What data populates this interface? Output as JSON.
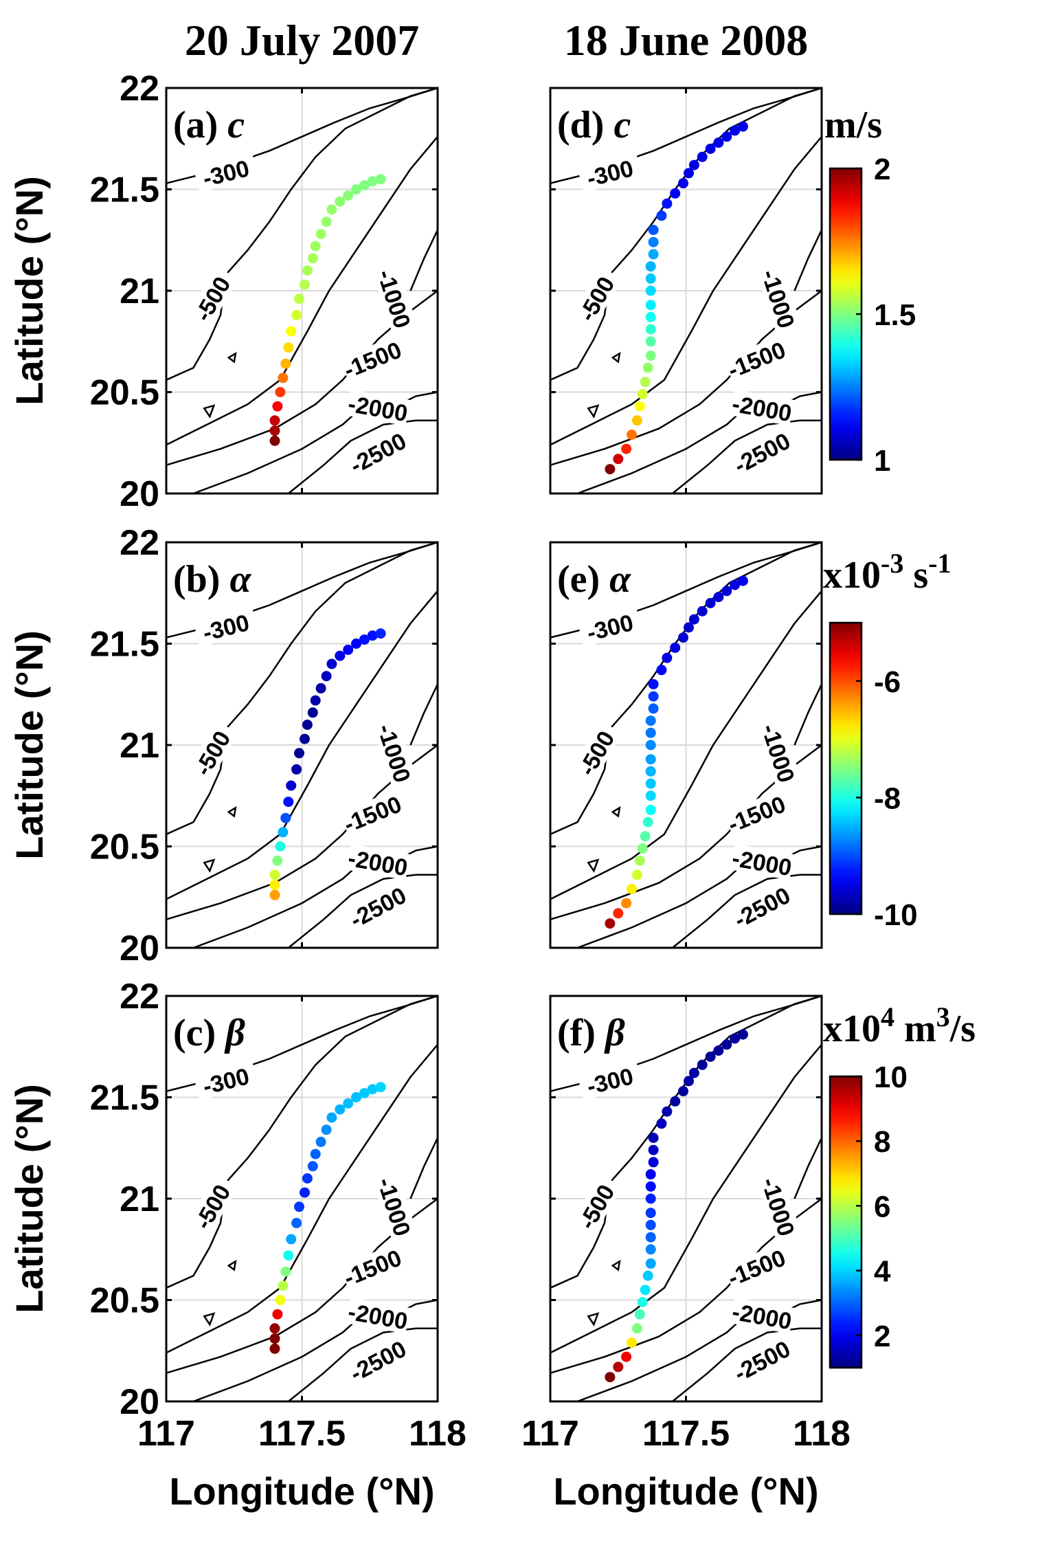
{
  "chart_data": {
    "type": "scatter",
    "columns": [
      {
        "title": "20 July 2007"
      },
      {
        "title": "18 June 2008"
      }
    ],
    "xlabel": "Longitude (°N)",
    "ylabel": "Latitude (°N)",
    "xlim": [
      117,
      118
    ],
    "ylim": [
      20,
      22
    ],
    "x_ticks": [
      "117",
      "117.5",
      "118"
    ],
    "y_ticks": [
      "20",
      "20.5",
      "21",
      "21.5",
      "22"
    ],
    "contour_labels": [
      "-300",
      "-500",
      "-1000",
      "-1500",
      "-2000",
      "-2500"
    ],
    "tracks": {
      "2007": {
        "lon": [
          117.4,
          117.4,
          117.4,
          117.41,
          117.42,
          117.43,
          117.44,
          117.45,
          117.46,
          117.48,
          117.49,
          117.51,
          117.52,
          117.54,
          117.55,
          117.57,
          117.59,
          117.61,
          117.64,
          117.67,
          117.7,
          117.73,
          117.76,
          117.79
        ],
        "lat": [
          20.26,
          20.31,
          20.36,
          20.43,
          20.5,
          20.57,
          20.64,
          20.72,
          20.8,
          20.88,
          20.96,
          21.03,
          21.1,
          21.16,
          21.22,
          21.28,
          21.34,
          21.4,
          21.44,
          21.47,
          21.5,
          21.52,
          21.54,
          21.55
        ],
        "c": [
          2.0,
          1.96,
          1.93,
          1.88,
          1.82,
          1.76,
          1.7,
          1.66,
          1.62,
          1.58,
          1.56,
          1.55,
          1.54,
          1.54,
          1.53,
          1.53,
          1.52,
          1.52,
          1.51,
          1.51,
          1.5,
          1.5,
          1.5,
          1.5
        ],
        "alpha": [
          -6.4,
          -6.8,
          -7.1,
          -7.5,
          -8.0,
          -8.5,
          -9.0,
          -9.3,
          -9.6,
          -9.8,
          -9.9,
          -9.9,
          -9.9,
          -9.9,
          -9.8,
          -9.8,
          -9.7,
          -9.6,
          -9.5,
          -9.4,
          -9.4,
          -9.3,
          -9.3,
          -9.2
        ],
        "beta": [
          10.0,
          10.0,
          9.8,
          9.0,
          6.5,
          6.0,
          5.5,
          4.5,
          3.6,
          3.0,
          2.6,
          2.4,
          2.6,
          2.9,
          3.0,
          3.2,
          3.4,
          3.6,
          3.7,
          3.8,
          3.8,
          3.9,
          3.9,
          4.0
        ]
      },
      "2008": {
        "lon": [
          117.22,
          117.25,
          117.28,
          117.3,
          117.32,
          117.33,
          117.34,
          117.35,
          117.36,
          117.37,
          117.37,
          117.37,
          117.37,
          117.37,
          117.37,
          117.37,
          117.37,
          117.38,
          117.38,
          117.38,
          117.41,
          117.43,
          117.46,
          117.49,
          117.51,
          117.53,
          117.56,
          117.59,
          117.62,
          117.65,
          117.68,
          117.71
        ],
        "lat": [
          20.12,
          20.17,
          20.22,
          20.29,
          20.36,
          20.43,
          20.49,
          20.55,
          20.62,
          20.68,
          20.75,
          20.81,
          20.87,
          20.93,
          21.0,
          21.06,
          21.12,
          21.18,
          21.24,
          21.3,
          21.37,
          21.43,
          21.48,
          21.53,
          21.58,
          21.62,
          21.66,
          21.7,
          21.73,
          21.76,
          21.79,
          21.81
        ],
        "c": [
          2.0,
          1.92,
          1.84,
          1.76,
          1.68,
          1.62,
          1.58,
          1.55,
          1.52,
          1.5,
          1.46,
          1.42,
          1.39,
          1.36,
          1.34,
          1.32,
          1.3,
          1.29,
          1.25,
          1.21,
          1.18,
          1.14,
          1.12,
          1.11,
          1.1,
          1.1,
          1.1,
          1.1,
          1.1,
          1.1,
          1.1,
          1.1
        ],
        "alpha": [
          -5.2,
          -5.8,
          -6.3,
          -6.8,
          -7.1,
          -7.3,
          -7.5,
          -7.7,
          -7.9,
          -8.1,
          -8.3,
          -8.4,
          -8.5,
          -8.6,
          -8.7,
          -8.8,
          -8.8,
          -8.9,
          -9.1,
          -9.3,
          -9.4,
          -9.5,
          -9.5,
          -9.6,
          -9.6,
          -9.6,
          -9.6,
          -9.6,
          -9.6,
          -9.6,
          -9.5,
          -9.5
        ],
        "beta": [
          10.0,
          9.5,
          9.0,
          6.8,
          5.5,
          5.0,
          4.6,
          4.2,
          3.9,
          3.6,
          3.3,
          3.0,
          2.8,
          2.6,
          2.4,
          2.2,
          2.0,
          1.8,
          1.6,
          1.5,
          1.5,
          1.4,
          1.3,
          1.3,
          1.3,
          1.3,
          1.2,
          1.2,
          1.2,
          1.2,
          1.2,
          1.2
        ]
      }
    },
    "rows": [
      {
        "key": "c",
        "labels": [
          "(a)",
          "(d)"
        ],
        "symbol": "c",
        "unit": "m/s",
        "clim": [
          1,
          2
        ],
        "cbar_ticks": [
          {
            "value": 1,
            "label": "1"
          },
          {
            "value": 1.5,
            "label": "1.5"
          },
          {
            "value": 2,
            "label": "2"
          }
        ]
      },
      {
        "key": "alpha",
        "labels": [
          "(b)",
          "(e)"
        ],
        "symbol": "α",
        "unit": "x10-3 s-1",
        "clim": [
          -10,
          -5
        ],
        "cbar_ticks": [
          {
            "value": -6,
            "label": "-6"
          },
          {
            "value": -8,
            "label": "-8"
          },
          {
            "value": -10,
            "label": "-10"
          }
        ]
      },
      {
        "key": "beta",
        "labels": [
          "(c)",
          "(f)"
        ],
        "symbol": "β",
        "unit": "x104 m3/s",
        "clim": [
          1,
          10
        ],
        "cbar_ticks": [
          {
            "value": 10,
            "label": "10"
          },
          {
            "value": 8,
            "label": "8"
          },
          {
            "value": 6,
            "label": "6"
          },
          {
            "value": 4,
            "label": "4"
          },
          {
            "value": 2,
            "label": "2"
          }
        ]
      }
    ]
  }
}
